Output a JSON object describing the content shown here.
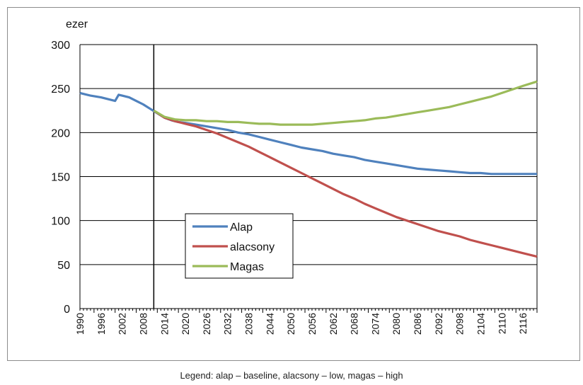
{
  "chart_data": {
    "type": "line",
    "ylabel": "ezer",
    "ylim": [
      0,
      300
    ],
    "yticks": [
      0,
      50,
      100,
      150,
      200,
      250,
      300
    ],
    "xlim": [
      1990,
      2120
    ],
    "xticks": [
      "1990",
      "1996",
      "2002",
      "2008",
      "2014",
      "2020",
      "2026",
      "2032",
      "2038",
      "2044",
      "2050",
      "2056",
      "2062",
      "2068",
      "2074",
      "2080",
      "2086",
      "2092",
      "2098",
      "2104",
      "2110",
      "2116"
    ],
    "vertical_marker_year": 2011,
    "grid": "horizontal",
    "legend_position": "center-left",
    "series": [
      {
        "name": "Alap",
        "color": "#4f81bd",
        "points": [
          [
            1990,
            245
          ],
          [
            1993,
            242
          ],
          [
            1996,
            240
          ],
          [
            1999,
            237
          ],
          [
            2000,
            236
          ],
          [
            2001,
            243
          ],
          [
            2002,
            242
          ],
          [
            2004,
            240
          ],
          [
            2006,
            236
          ],
          [
            2008,
            232
          ],
          [
            2010,
            227
          ],
          [
            2012,
            222
          ],
          [
            2014,
            217
          ],
          [
            2016,
            214
          ],
          [
            2018,
            212
          ],
          [
            2020,
            211
          ],
          [
            2023,
            209
          ],
          [
            2026,
            207
          ],
          [
            2029,
            205
          ],
          [
            2032,
            203
          ],
          [
            2035,
            200
          ],
          [
            2038,
            198
          ],
          [
            2041,
            195
          ],
          [
            2044,
            192
          ],
          [
            2047,
            189
          ],
          [
            2050,
            186
          ],
          [
            2053,
            183
          ],
          [
            2056,
            181
          ],
          [
            2059,
            179
          ],
          [
            2062,
            176
          ],
          [
            2065,
            174
          ],
          [
            2068,
            172
          ],
          [
            2071,
            169
          ],
          [
            2074,
            167
          ],
          [
            2077,
            165
          ],
          [
            2080,
            163
          ],
          [
            2083,
            161
          ],
          [
            2086,
            159
          ],
          [
            2089,
            158
          ],
          [
            2092,
            157
          ],
          [
            2095,
            156
          ],
          [
            2098,
            155
          ],
          [
            2101,
            154
          ],
          [
            2104,
            154
          ],
          [
            2107,
            153
          ],
          [
            2110,
            153
          ],
          [
            2113,
            153
          ],
          [
            2116,
            153
          ],
          [
            2120,
            153
          ]
        ]
      },
      {
        "name": "alacsony",
        "color": "#c0504d",
        "points": [
          [
            2011,
            225
          ],
          [
            2014,
            217
          ],
          [
            2017,
            213
          ],
          [
            2020,
            210
          ],
          [
            2023,
            207
          ],
          [
            2026,
            203
          ],
          [
            2029,
            199
          ],
          [
            2032,
            194
          ],
          [
            2035,
            189
          ],
          [
            2038,
            184
          ],
          [
            2041,
            178
          ],
          [
            2044,
            172
          ],
          [
            2047,
            166
          ],
          [
            2050,
            160
          ],
          [
            2053,
            154
          ],
          [
            2056,
            148
          ],
          [
            2059,
            142
          ],
          [
            2062,
            136
          ],
          [
            2065,
            130
          ],
          [
            2068,
            125
          ],
          [
            2071,
            119
          ],
          [
            2074,
            114
          ],
          [
            2077,
            109
          ],
          [
            2080,
            104
          ],
          [
            2083,
            100
          ],
          [
            2086,
            96
          ],
          [
            2089,
            92
          ],
          [
            2092,
            88
          ],
          [
            2095,
            85
          ],
          [
            2098,
            82
          ],
          [
            2101,
            78
          ],
          [
            2104,
            75
          ],
          [
            2107,
            72
          ],
          [
            2110,
            69
          ],
          [
            2113,
            66
          ],
          [
            2116,
            63
          ],
          [
            2120,
            59
          ]
        ]
      },
      {
        "name": "Magas",
        "color": "#9bbb59",
        "points": [
          [
            2011,
            225
          ],
          [
            2014,
            218
          ],
          [
            2017,
            215
          ],
          [
            2020,
            214
          ],
          [
            2023,
            214
          ],
          [
            2026,
            213
          ],
          [
            2029,
            213
          ],
          [
            2032,
            212
          ],
          [
            2035,
            212
          ],
          [
            2038,
            211
          ],
          [
            2041,
            210
          ],
          [
            2044,
            210
          ],
          [
            2047,
            209
          ],
          [
            2050,
            209
          ],
          [
            2053,
            209
          ],
          [
            2056,
            209
          ],
          [
            2059,
            210
          ],
          [
            2062,
            211
          ],
          [
            2065,
            212
          ],
          [
            2068,
            213
          ],
          [
            2071,
            214
          ],
          [
            2074,
            216
          ],
          [
            2077,
            217
          ],
          [
            2080,
            219
          ],
          [
            2083,
            221
          ],
          [
            2086,
            223
          ],
          [
            2089,
            225
          ],
          [
            2092,
            227
          ],
          [
            2095,
            229
          ],
          [
            2098,
            232
          ],
          [
            2101,
            235
          ],
          [
            2104,
            238
          ],
          [
            2107,
            241
          ],
          [
            2110,
            245
          ],
          [
            2113,
            249
          ],
          [
            2116,
            253
          ],
          [
            2120,
            258
          ]
        ]
      }
    ]
  },
  "caption": "Legend: alap – baseline, alacsony – low, magas – high"
}
